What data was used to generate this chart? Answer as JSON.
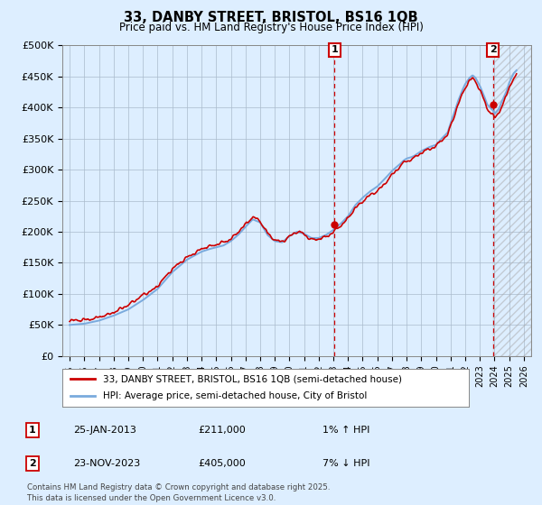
{
  "title": "33, DANBY STREET, BRISTOL, BS16 1QB",
  "subtitle": "Price paid vs. HM Land Registry's House Price Index (HPI)",
  "ylim": [
    0,
    500000
  ],
  "yticks": [
    0,
    50000,
    100000,
    150000,
    200000,
    250000,
    300000,
    350000,
    400000,
    450000,
    500000
  ],
  "ytick_labels": [
    "£0",
    "£50K",
    "£100K",
    "£150K",
    "£200K",
    "£250K",
    "£300K",
    "£350K",
    "£400K",
    "£450K",
    "£500K"
  ],
  "xlim_start": 1994.5,
  "xlim_end": 2026.5,
  "hpi_color": "#7aaadd",
  "price_color": "#cc0000",
  "marker1_year": 2013.07,
  "marker1_price": 211000,
  "marker2_year": 2023.9,
  "marker2_price": 405000,
  "legend_line1": "33, DANBY STREET, BRISTOL, BS16 1QB (semi-detached house)",
  "legend_line2": "HPI: Average price, semi-detached house, City of Bristol",
  "footer": "Contains HM Land Registry data © Crown copyright and database right 2025.\nThis data is licensed under the Open Government Licence v3.0.",
  "bg_color": "#ddeeff",
  "plot_bg": "#ddeeff",
  "grid_color": "#aabbcc"
}
